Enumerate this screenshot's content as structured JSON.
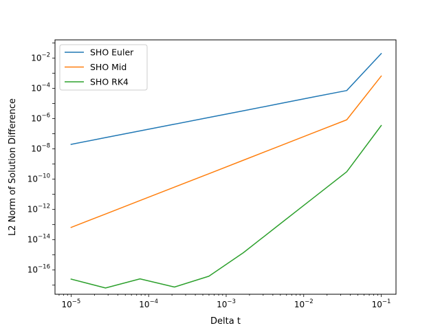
{
  "chart_data": {
    "type": "line",
    "xscale": "log",
    "yscale": "log",
    "xlabel": "Delta t",
    "ylabel": "L2 Norm of Solution Difference",
    "xlim": [
      6.2e-06,
      0.155
    ],
    "ylim": [
      2.5e-18,
      0.16
    ],
    "grid": false,
    "legend_position": "upper-left",
    "x_ticks": [
      {
        "base": "10",
        "exp": "−5"
      },
      {
        "base": "10",
        "exp": "−4"
      },
      {
        "base": "10",
        "exp": "−3"
      },
      {
        "base": "10",
        "exp": "−2"
      },
      {
        "base": "10",
        "exp": "−1"
      }
    ],
    "y_ticks": [
      {
        "base": "10",
        "exp": "−16"
      },
      {
        "base": "10",
        "exp": "−14"
      },
      {
        "base": "10",
        "exp": "−12"
      },
      {
        "base": "10",
        "exp": "−10"
      },
      {
        "base": "10",
        "exp": "−8"
      },
      {
        "base": "10",
        "exp": "−6"
      },
      {
        "base": "10",
        "exp": "−4"
      },
      {
        "base": "10",
        "exp": "−2"
      }
    ],
    "x": [
      1e-05,
      2.78e-05,
      7.74e-05,
      0.000215,
      0.000599,
      0.00167,
      0.00464,
      0.0129,
      0.0359,
      0.1
    ],
    "series": [
      {
        "name": "SHO Euler",
        "color": "#1f77b4",
        "values": [
          2e-08,
          5.6e-08,
          1.55e-07,
          4.3e-07,
          1.2e-06,
          3.3e-06,
          9.3e-06,
          2.6e-05,
          7.2e-05,
          0.02
        ]
      },
      {
        "name": "SHO Mid",
        "color": "#ff7f0e",
        "values": [
          6.5e-14,
          5e-13,
          3.9e-12,
          3e-11,
          2.3e-10,
          1.8e-09,
          1.4e-08,
          1.08e-07,
          8.4e-07,
          0.00065
        ]
      },
      {
        "name": "SHO RK4",
        "color": "#2ca02c",
        "values": [
          2.5e-17,
          6.5e-18,
          2.6e-17,
          7.5e-18,
          3.9e-17,
          1.4e-15,
          8.5e-14,
          5.1e-12,
          3.1e-10,
          3.5e-07
        ]
      }
    ]
  }
}
